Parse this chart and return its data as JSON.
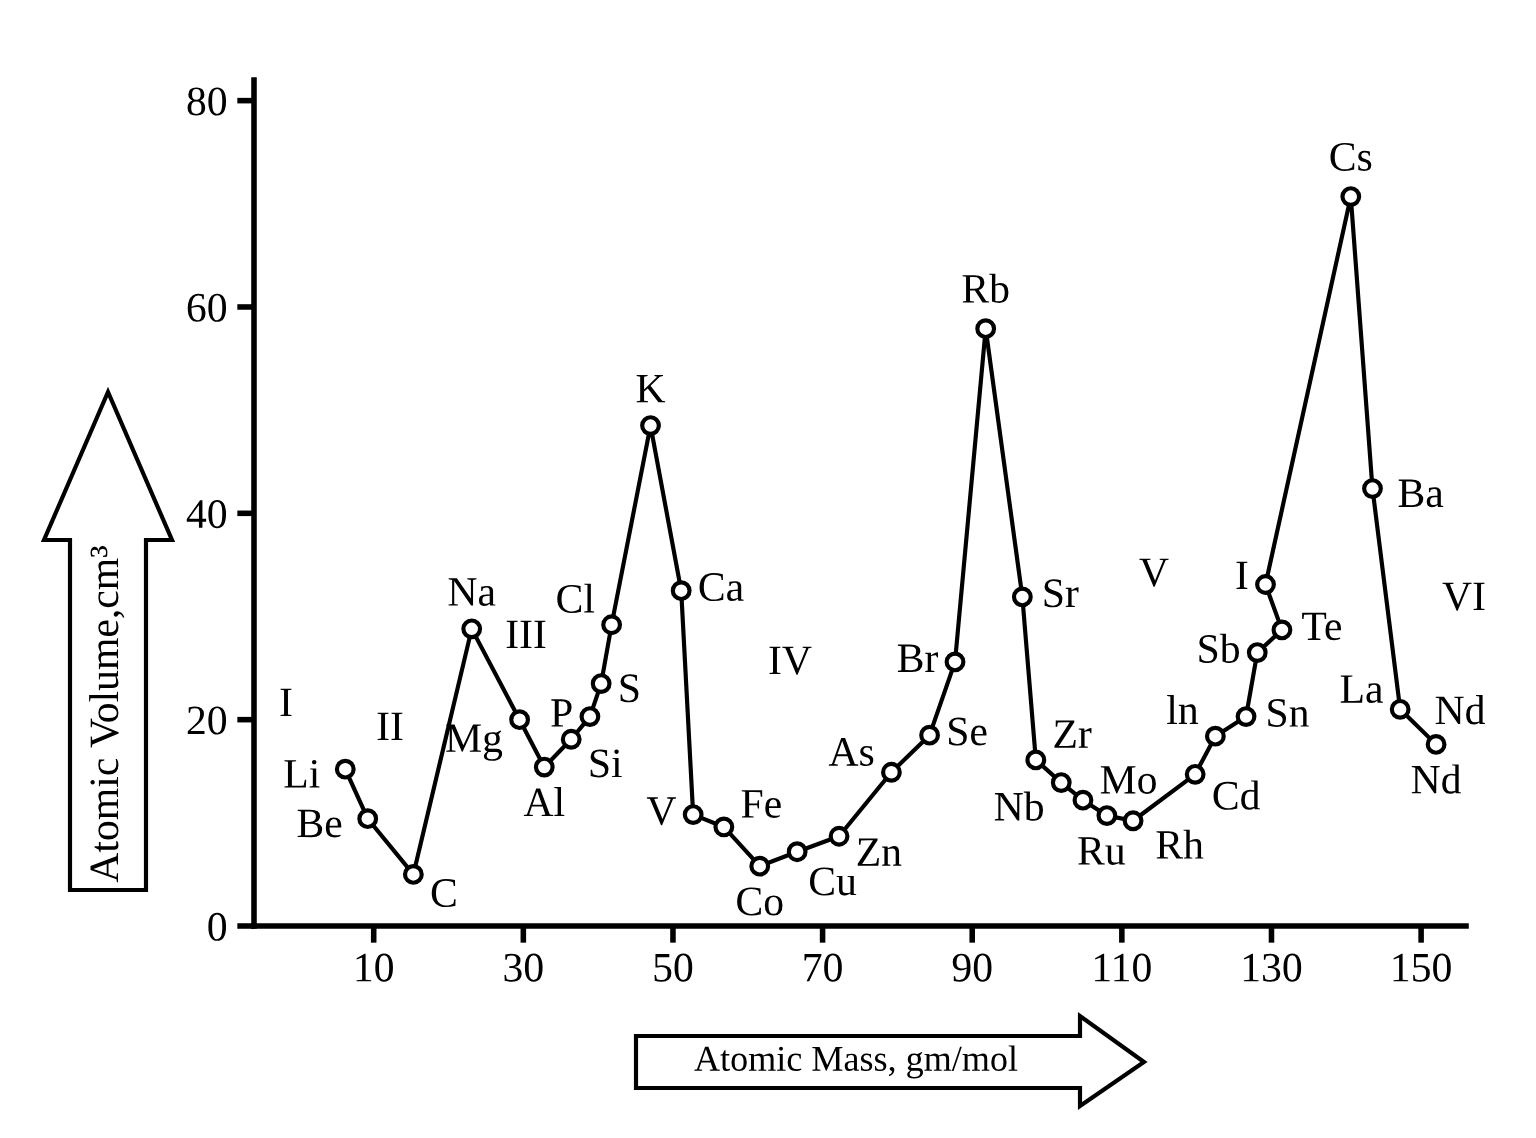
{
  "chart_data": {
    "type": "line",
    "xlabel": "Atomic Mass, gm/mol",
    "ylabel": "Atomic Volume,cm³",
    "x": [
      6.2,
      9.2,
      15.3,
      23.1,
      29.5,
      32.8,
      36.4,
      38.9,
      40.4,
      41.8,
      47.0,
      51.1,
      52.7,
      56.8,
      61.6,
      66.6,
      72.2,
      79.2,
      84.3,
      87.7,
      91.8,
      96.7,
      98.5,
      101.9,
      104.8,
      108.0,
      111.5,
      119.8,
      122.5,
      126.6,
      128.1,
      131.4,
      129.2,
      140.6,
      143.5,
      147.2,
      152.0
    ],
    "series": [
      {
        "color": "#000000",
        "values": [
          15.2,
          10.4,
          5.0,
          28.8,
          20.0,
          15.4,
          18.1,
          20.3,
          23.5,
          29.2,
          48.5,
          32.5,
          10.8,
          9.6,
          5.8,
          7.2,
          8.7,
          14.9,
          18.5,
          25.6,
          57.9,
          31.9,
          16.1,
          13.9,
          12.2,
          10.7,
          10.2,
          14.7,
          18.4,
          20.3,
          26.5,
          28.7,
          33.1,
          70.7,
          42.4,
          21.0,
          17.6
        ]
      }
    ],
    "marker": "circle",
    "line_style": "solid",
    "grid": false,
    "legend": false,
    "xlim": [
      -6,
      156
    ],
    "ylim": [
      0,
      82
    ],
    "xticks": [
      10,
      30,
      50,
      70,
      90,
      110,
      130,
      150
    ],
    "yticks": [
      0,
      20,
      40,
      60,
      80
    ],
    "annotations": [
      {
        "text": "Li",
        "x": 6.2,
        "y": 15.2
      },
      {
        "text": "Be",
        "x": 9.2,
        "y": 10.4
      },
      {
        "text": "C",
        "x": 15.3,
        "y": 5.0
      },
      {
        "text": "Na",
        "x": 23.1,
        "y": 28.8
      },
      {
        "text": "Mg",
        "x": 29.5,
        "y": 20.0
      },
      {
        "text": "Al",
        "x": 32.8,
        "y": 15.4
      },
      {
        "text": "Si",
        "x": 36.4,
        "y": 18.1
      },
      {
        "text": "P",
        "x": 38.9,
        "y": 20.3
      },
      {
        "text": "S",
        "x": 40.4,
        "y": 23.5
      },
      {
        "text": "Cl",
        "x": 41.8,
        "y": 29.2
      },
      {
        "text": "K",
        "x": 47.0,
        "y": 48.5
      },
      {
        "text": "Ca",
        "x": 51.1,
        "y": 32.5
      },
      {
        "text": "V",
        "x": 52.7,
        "y": 10.8
      },
      {
        "text": "Fe",
        "x": 56.8,
        "y": 9.6
      },
      {
        "text": "Co",
        "x": 61.6,
        "y": 5.8
      },
      {
        "text": "Cu",
        "x": 66.6,
        "y": 7.2
      },
      {
        "text": "Zn",
        "x": 72.2,
        "y": 8.7
      },
      {
        "text": "As",
        "x": 79.2,
        "y": 14.9
      },
      {
        "text": "Se",
        "x": 84.3,
        "y": 18.5
      },
      {
        "text": "Br",
        "x": 87.7,
        "y": 25.6
      },
      {
        "text": "Rb",
        "x": 91.8,
        "y": 57.9
      },
      {
        "text": "Sr",
        "x": 96.7,
        "y": 31.9
      },
      {
        "text": "Zr",
        "x": 98.5,
        "y": 16.1
      },
      {
        "text": "Nb",
        "x": 101.9,
        "y": 13.9
      },
      {
        "text": "Mo",
        "x": 104.8,
        "y": 12.2
      },
      {
        "text": "Ru",
        "x": 108.0,
        "y": 10.7
      },
      {
        "text": "Rh",
        "x": 111.5,
        "y": 10.2
      },
      {
        "text": "Cd",
        "x": 119.8,
        "y": 14.7
      },
      {
        "text": "ln",
        "x": 122.5,
        "y": 18.4
      },
      {
        "text": "Sn",
        "x": 126.6,
        "y": 20.3
      },
      {
        "text": "Sb",
        "x": 128.1,
        "y": 26.5
      },
      {
        "text": "Te",
        "x": 131.4,
        "y": 28.7
      },
      {
        "text": "I",
        "x": 129.2,
        "y": 33.1
      },
      {
        "text": "Cs",
        "x": 140.6,
        "y": 70.7
      },
      {
        "text": "Ba",
        "x": 143.5,
        "y": 42.4
      },
      {
        "text": "La",
        "x": 147.2,
        "y": 21.0
      },
      {
        "text": "Nd",
        "x": 152.0,
        "y": 17.6
      },
      "Nd",
      "I",
      "II",
      "III",
      "IV",
      "V",
      "VI"
    ]
  }
}
